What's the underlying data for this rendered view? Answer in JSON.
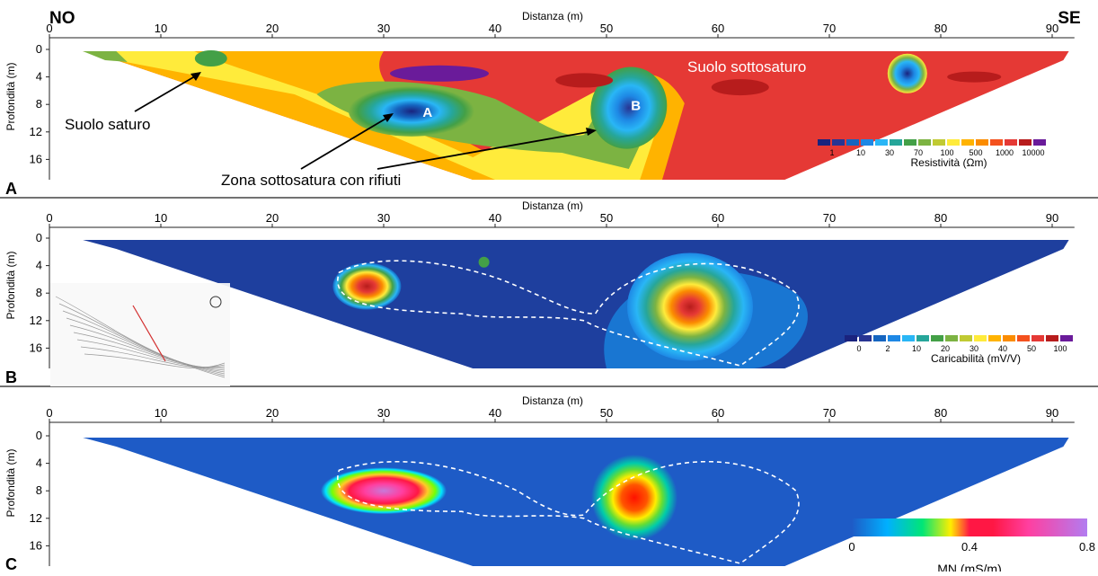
{
  "chart_data": [
    {
      "type": "heatmap",
      "panel_label": "A",
      "xlabel": "Distanza (m)",
      "ylabel": "Profondità (m)",
      "xlim": [
        0,
        92
      ],
      "ylim": [
        0,
        19
      ],
      "x_ticks": [
        0,
        10,
        20,
        30,
        40,
        50,
        60,
        70,
        80,
        90
      ],
      "y_ticks": [
        0,
        4,
        8,
        12,
        16
      ],
      "direction_labels": [
        "NO",
        "SE"
      ],
      "annotations": [
        {
          "text": "Suolo saturo",
          "x": 5,
          "y": 10.5
        },
        {
          "text": "Zona sottosatura con rifiuti",
          "x": 16,
          "y": 18
        },
        {
          "text": "Suolo sottosaturo",
          "x": 65,
          "y": 2.5
        },
        {
          "text": "A",
          "x": 34,
          "y": 9.5
        },
        {
          "text": "B",
          "x": 52.5,
          "y": 9
        }
      ],
      "colorbar": {
        "label": "Resistività (Ωm)",
        "ticks": [
          "1",
          "10",
          "30",
          "70",
          "100",
          "500",
          "1000",
          "10000"
        ],
        "colors": [
          "#1a237e",
          "#283593",
          "#1565c0",
          "#1e88e5",
          "#29b6f6",
          "#26a69a",
          "#43a047",
          "#7cb342",
          "#c0ca33",
          "#ffeb3b",
          "#ffb300",
          "#fb8c00",
          "#f4511e",
          "#e53935",
          "#b71c1c",
          "#6a1b9a"
        ]
      },
      "anomalies": [
        {
          "label": "A",
          "x": 32,
          "depth": 9,
          "value": 10
        },
        {
          "label": "B",
          "x": 52,
          "depth": 9,
          "value": 5
        },
        {
          "label": "",
          "x": 77,
          "depth": 4,
          "value": 20
        }
      ]
    },
    {
      "type": "heatmap",
      "panel_label": "B",
      "xlabel": "Distanza (m)",
      "ylabel": "Profondità (m)",
      "xlim": [
        0,
        92
      ],
      "ylim": [
        0,
        19
      ],
      "x_ticks": [
        0,
        10,
        20,
        30,
        40,
        50,
        60,
        70,
        80,
        90
      ],
      "y_ticks": [
        0,
        4,
        8,
        12,
        16
      ],
      "colorbar": {
        "label": "Caricabilità (mV/V)",
        "ticks": [
          "0",
          "2",
          "10",
          "20",
          "30",
          "40",
          "50",
          "100"
        ],
        "colors": [
          "#1a237e",
          "#283593",
          "#1565c0",
          "#1e88e5",
          "#29b6f6",
          "#26a69a",
          "#43a047",
          "#7cb342",
          "#c0ca33",
          "#ffeb3b",
          "#ffb300",
          "#fb8c00",
          "#f4511e",
          "#e53935",
          "#b71c1c",
          "#6a1b9a"
        ]
      },
      "anomalies": [
        {
          "x": 28.5,
          "depth": 7,
          "value": 100
        },
        {
          "x": 57.5,
          "depth": 10,
          "value": 100
        }
      ]
    },
    {
      "type": "heatmap",
      "panel_label": "C",
      "xlabel": "Distanza (m)",
      "ylabel": "Profondità (m)",
      "xlim": [
        0,
        92
      ],
      "ylim": [
        0,
        19
      ],
      "x_ticks": [
        0,
        10,
        20,
        30,
        40,
        50,
        60,
        70,
        80,
        90
      ],
      "y_ticks": [
        0,
        4,
        8,
        12,
        16
      ],
      "colorbar": {
        "label": "MN (mS/m)",
        "min": 0,
        "max": 0.8,
        "ticks": [
          "0",
          "0.4",
          "0.8"
        ]
      },
      "anomalies": [
        {
          "x": 30,
          "depth": 8,
          "value": 0.7
        },
        {
          "x": 52.5,
          "depth": 9,
          "value": 0.4
        }
      ]
    }
  ]
}
